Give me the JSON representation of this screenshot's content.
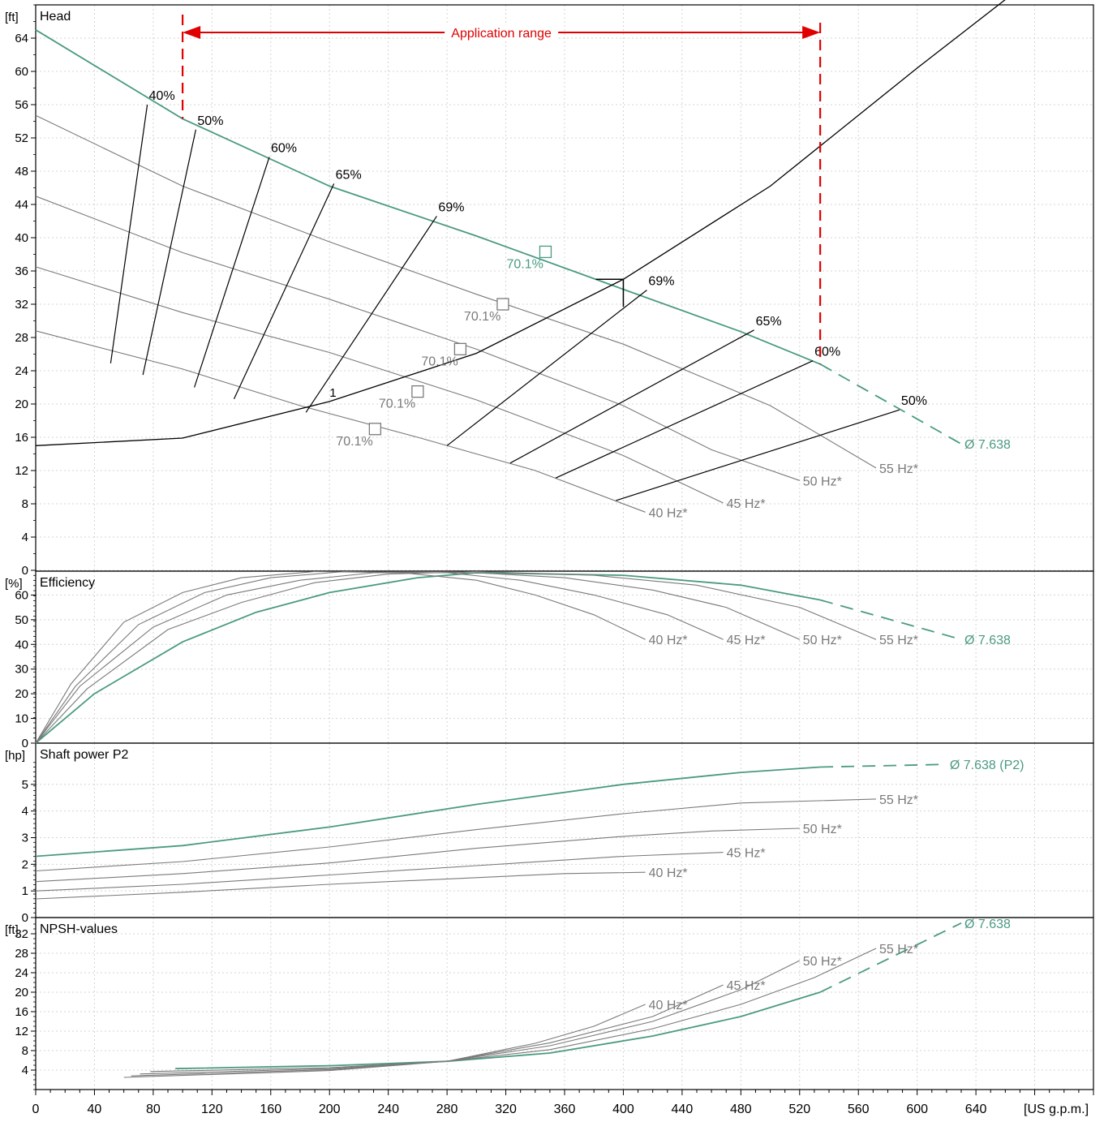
{
  "chart_data": {
    "type": "line",
    "colors": {
      "trim": "#4a9a83",
      "curve": "#7a7a7a",
      "black": "#000000",
      "range": "#e00000",
      "grid": "#d4d4d4"
    },
    "x_axis": {
      "label": "[US g.p.m.]",
      "range": [
        0,
        720
      ],
      "ticks": [
        "0",
        "40",
        "80",
        "120",
        "160",
        "200",
        "240",
        "280",
        "320",
        "360",
        "400",
        "440",
        "480",
        "520",
        "560",
        "600",
        "640"
      ]
    },
    "application_range": {
      "label": "Application range",
      "x_min": 100,
      "x_max": 534
    },
    "panels": {
      "head": {
        "title": "Head",
        "unit": "[ft]",
        "range": [
          0,
          68
        ],
        "ticks": [
          "0",
          "4",
          "8",
          "12",
          "16",
          "20",
          "24",
          "28",
          "32",
          "36",
          "40",
          "44",
          "48",
          "52",
          "56",
          "60",
          "64"
        ],
        "series": [
          {
            "name": "Ø 7.638",
            "points": [
              [
                0,
                65.0
              ],
              [
                100,
                54.3
              ],
              [
                200,
                46.2
              ],
              [
                300,
                40.2
              ],
              [
                400,
                33.8
              ],
              [
                480,
                28.7
              ],
              [
                534,
                24.8
              ]
            ],
            "dashed_points": [
              [
                534,
                24.8
              ],
              [
                630,
                15.2
              ]
            ]
          },
          {
            "name": "55 Hz*",
            "points": [
              [
                0,
                54.7
              ],
              [
                100,
                46.2
              ],
              [
                200,
                39.5
              ],
              [
                300,
                33.2
              ],
              [
                400,
                27.2
              ],
              [
                500,
                19.8
              ],
              [
                572,
                12.3
              ]
            ]
          },
          {
            "name": "50 Hz*",
            "points": [
              [
                0,
                45.0
              ],
              [
                100,
                38.2
              ],
              [
                200,
                32.6
              ],
              [
                300,
                26.6
              ],
              [
                400,
                19.8
              ],
              [
                460,
                14.5
              ],
              [
                520,
                10.8
              ]
            ]
          },
          {
            "name": "45 Hz*",
            "points": [
              [
                0,
                36.5
              ],
              [
                100,
                31.0
              ],
              [
                200,
                26.2
              ],
              [
                300,
                20.5
              ],
              [
                400,
                13.8
              ],
              [
                468,
                8.1
              ]
            ]
          },
          {
            "name": "40 Hz*",
            "points": [
              [
                0,
                28.8
              ],
              [
                100,
                24.2
              ],
              [
                180,
                19.8
              ],
              [
                260,
                16.0
              ],
              [
                340,
                12.0
              ],
              [
                415,
                7.0
              ]
            ]
          }
        ],
        "system_curve": {
          "label": "1",
          "points": [
            [
              0,
              15.0
            ],
            [
              100,
              15.9
            ],
            [
              200,
              20.3
            ],
            [
              300,
              26.1
            ],
            [
              400,
              35.0
            ],
            [
              500,
              46.2
            ],
            [
              600,
              60.4
            ],
            [
              670,
              70.0
            ]
          ]
        },
        "operating_point": {
          "x": 400,
          "y": 35.0
        },
        "bep_markers": [
          {
            "label": "70.1%",
            "x": 347,
            "y": 38.3,
            "trim": true
          },
          {
            "label": "70.1%",
            "x": 318,
            "y": 32.0,
            "trim": false
          },
          {
            "label": "70.1%",
            "x": 289,
            "y": 26.6,
            "trim": false
          },
          {
            "label": "70.1%",
            "x": 260,
            "y": 21.5,
            "trim": false
          },
          {
            "label": "70.1%",
            "x": 231,
            "y": 17.0,
            "trim": false
          }
        ],
        "iso_efficiency_left": [
          {
            "label": "40%",
            "points": [
              [
                76,
                56.0
              ],
              [
                51,
                24.9
              ]
            ]
          },
          {
            "label": "50%",
            "points": [
              [
                109,
                53.0
              ],
              [
                73,
                23.5
              ]
            ]
          },
          {
            "label": "60%",
            "points": [
              [
                159,
                49.7
              ],
              [
                108,
                22.0
              ]
            ]
          },
          {
            "label": "65%",
            "points": [
              [
                203,
                46.5
              ],
              [
                135,
                20.6
              ]
            ]
          },
          {
            "label": "69%",
            "points": [
              [
                273,
                42.6
              ],
              [
                184,
                19.0
              ]
            ]
          }
        ],
        "iso_efficiency_right": [
          {
            "label": "69%",
            "points": [
              [
                416,
                33.7
              ],
              [
                280,
                15.0
              ]
            ]
          },
          {
            "label": "65%",
            "points": [
              [
                489,
                28.9
              ],
              [
                323,
                12.9
              ]
            ]
          },
          {
            "label": "60%",
            "points": [
              [
                529,
                25.2
              ],
              [
                354,
                11.1
              ]
            ]
          },
          {
            "label": "50%",
            "points": [
              [
                588,
                19.3
              ],
              [
                395,
                8.4
              ]
            ]
          }
        ]
      },
      "efficiency": {
        "title": "Efficiency",
        "unit": "[%]",
        "range": [
          0,
          70
        ],
        "ticks": [
          "0",
          "10",
          "20",
          "30",
          "40",
          "50",
          "60"
        ],
        "series": [
          {
            "name": "Ø 7.638",
            "points": [
              [
                0,
                0
              ],
              [
                40,
                20
              ],
              [
                100,
                41
              ],
              [
                150,
                53
              ],
              [
                200,
                61
              ],
              [
                260,
                67
              ],
              [
                300,
                69
              ],
              [
                400,
                68
              ],
              [
                480,
                64
              ],
              [
                534,
                58
              ]
            ],
            "dashed_points": [
              [
                534,
                58
              ],
              [
                630,
                42
              ]
            ]
          },
          {
            "name": "55 Hz*",
            "points": [
              [
                0,
                0
              ],
              [
                35,
                22
              ],
              [
                90,
                46
              ],
              [
                140,
                57
              ],
              [
                190,
                65
              ],
              [
                240,
                68.5
              ],
              [
                300,
                69.5
              ],
              [
                380,
                68
              ],
              [
                450,
                64
              ],
              [
                520,
                55
              ],
              [
                572,
                42
              ]
            ]
          },
          {
            "name": "50 Hz*",
            "points": [
              [
                0,
                0
              ],
              [
                30,
                23
              ],
              [
                80,
                47
              ],
              [
                130,
                60
              ],
              [
                180,
                66
              ],
              [
                230,
                69
              ],
              [
                300,
                69
              ],
              [
                360,
                67
              ],
              [
                420,
                62
              ],
              [
                470,
                55
              ],
              [
                520,
                42
              ]
            ]
          },
          {
            "name": "45 Hz*",
            "points": [
              [
                0,
                0
              ],
              [
                27,
                23
              ],
              [
                70,
                48
              ],
              [
                115,
                61
              ],
              [
                160,
                67
              ],
              [
                210,
                69.5
              ],
              [
                280,
                69
              ],
              [
                330,
                66
              ],
              [
                380,
                60
              ],
              [
                430,
                52
              ],
              [
                468,
                42
              ]
            ]
          },
          {
            "name": "40 Hz*",
            "points": [
              [
                0,
                0
              ],
              [
                24,
                24
              ],
              [
                60,
                49
              ],
              [
                100,
                61
              ],
              [
                140,
                67
              ],
              [
                190,
                69.5
              ],
              [
                250,
                69
              ],
              [
                300,
                66
              ],
              [
                340,
                60
              ],
              [
                380,
                52
              ],
              [
                415,
                42
              ]
            ]
          }
        ]
      },
      "power": {
        "title": "Shaft power P2",
        "unit": "[hp]",
        "range": [
          0,
          6
        ],
        "ticks": [
          "0",
          "1",
          "2",
          "3",
          "4",
          "5"
        ],
        "series": [
          {
            "name": "Ø 7.638 (P2)",
            "points": [
              [
                0,
                2.3
              ],
              [
                100,
                2.7
              ],
              [
                200,
                3.4
              ],
              [
                300,
                4.25
              ],
              [
                400,
                5.0
              ],
              [
                480,
                5.45
              ],
              [
                534,
                5.65
              ]
            ],
            "dashed_points": [
              [
                534,
                5.65
              ],
              [
                620,
                5.75
              ]
            ]
          },
          {
            "name": "55 Hz*",
            "points": [
              [
                0,
                1.75
              ],
              [
                100,
                2.1
              ],
              [
                200,
                2.65
              ],
              [
                300,
                3.3
              ],
              [
                400,
                3.9
              ],
              [
                480,
                4.3
              ],
              [
                572,
                4.45
              ]
            ]
          },
          {
            "name": "50 Hz*",
            "points": [
              [
                0,
                1.35
              ],
              [
                100,
                1.65
              ],
              [
                200,
                2.05
              ],
              [
                300,
                2.6
              ],
              [
                400,
                3.05
              ],
              [
                460,
                3.25
              ],
              [
                520,
                3.35
              ]
            ]
          },
          {
            "name": "45 Hz*",
            "points": [
              [
                0,
                1.0
              ],
              [
                100,
                1.25
              ],
              [
                200,
                1.6
              ],
              [
                300,
                1.95
              ],
              [
                400,
                2.3
              ],
              [
                468,
                2.45
              ]
            ]
          },
          {
            "name": "40 Hz*",
            "points": [
              [
                0,
                0.7
              ],
              [
                100,
                0.95
              ],
              [
                200,
                1.25
              ],
              [
                300,
                1.5
              ],
              [
                360,
                1.65
              ],
              [
                415,
                1.7
              ]
            ]
          }
        ]
      },
      "npsh": {
        "title": "NPSH-values",
        "unit": "[ft]",
        "range": [
          0,
          34
        ],
        "ticks": [
          "4",
          "8",
          "12",
          "16",
          "20",
          "24",
          "28",
          "32"
        ],
        "series": [
          {
            "name": "Ø 7.638",
            "points": [
              [
                95,
                4.3
              ],
              [
                200,
                4.9
              ],
              [
                280,
                5.8
              ],
              [
                350,
                7.5
              ],
              [
                420,
                11.0
              ],
              [
                480,
                15.0
              ],
              [
                534,
                20.0
              ]
            ],
            "dashed_points": [
              [
                534,
                20.0
              ],
              [
                630,
                34.2
              ]
            ]
          },
          {
            "name": "55 Hz*",
            "points": [
              [
                78,
                3.7
              ],
              [
                200,
                4.5
              ],
              [
                280,
                5.8
              ],
              [
                350,
                8.2
              ],
              [
                420,
                12.5
              ],
              [
                480,
                17.5
              ],
              [
                530,
                23.0
              ],
              [
                572,
                29.0
              ]
            ]
          },
          {
            "name": "50 Hz*",
            "points": [
              [
                71,
                3.2
              ],
              [
                200,
                4.3
              ],
              [
                280,
                5.8
              ],
              [
                350,
                9.0
              ],
              [
                420,
                14.0
              ],
              [
                480,
                20.5
              ],
              [
                520,
                26.5
              ]
            ]
          },
          {
            "name": "45 Hz*",
            "points": [
              [
                65,
                2.8
              ],
              [
                200,
                4.1
              ],
              [
                280,
                5.8
              ],
              [
                350,
                9.6
              ],
              [
                420,
                15.0
              ],
              [
                468,
                21.5
              ]
            ]
          },
          {
            "name": "40 Hz*",
            "points": [
              [
                60,
                2.5
              ],
              [
                200,
                3.9
              ],
              [
                280,
                5.8
              ],
              [
                340,
                9.5
              ],
              [
                380,
                13.0
              ],
              [
                415,
                17.5
              ]
            ]
          }
        ]
      }
    }
  }
}
